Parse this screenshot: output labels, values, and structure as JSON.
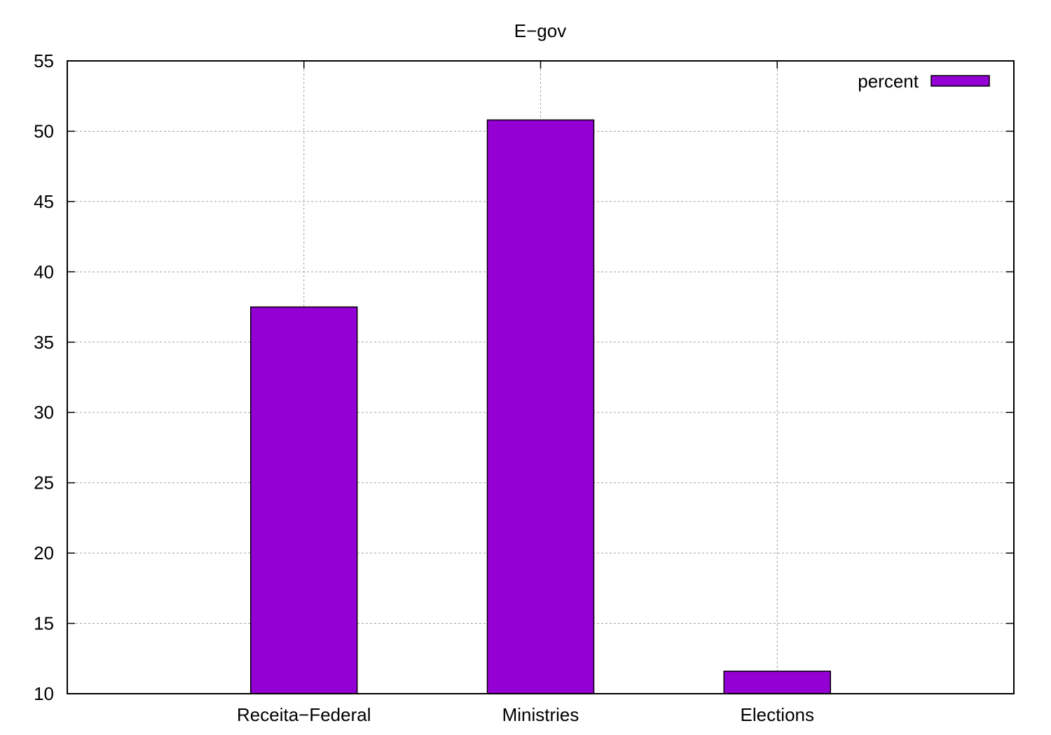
{
  "chart_data": {
    "type": "bar",
    "title": "E−gov",
    "categories": [
      "Receita−Federal",
      "Ministries",
      "Elections"
    ],
    "series": [
      {
        "name": "percent",
        "values": [
          37.5,
          50.8,
          11.6
        ]
      }
    ],
    "xlabel": "",
    "ylabel": "",
    "ylim": [
      10,
      55
    ],
    "yticks": [
      "10",
      "15",
      "20",
      "25",
      "30",
      "35",
      "40",
      "45",
      "50",
      "55"
    ],
    "grid": true,
    "legend_position": "top-right",
    "colors": {
      "bar_fill": "#9400d3",
      "bar_stroke": "#000000",
      "grid": "#a0a0a0",
      "axis": "#000000"
    }
  }
}
